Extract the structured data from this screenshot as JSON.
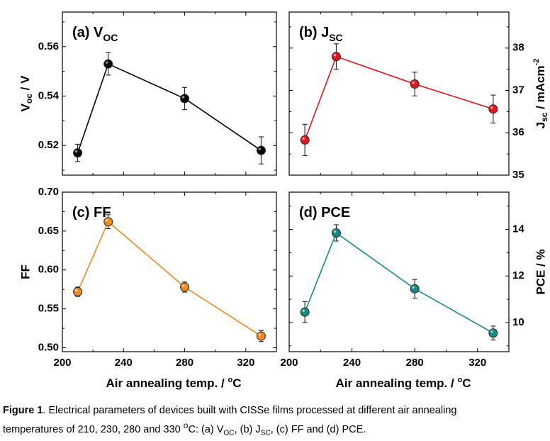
{
  "chart_data": [
    {
      "type": "line",
      "panel": "(a)",
      "title": "V",
      "title_sub": "OC",
      "ylabel": "V",
      "ylabel_sub": "oc",
      "ylabel_unit": " / V",
      "yaxis_side": "left",
      "ylim": [
        0.508,
        0.574
      ],
      "yticks": [
        0.52,
        0.54,
        0.56
      ],
      "ytick_labels": [
        "0.52",
        "0.54",
        "0.56"
      ],
      "xlim": [
        200,
        340
      ],
      "color": "#000000",
      "x": [
        210,
        230,
        280,
        330
      ],
      "y": [
        0.517,
        0.553,
        0.539,
        0.518
      ],
      "err": [
        0.0035,
        0.0045,
        0.0045,
        0.0055
      ]
    },
    {
      "type": "line",
      "panel": "(b)",
      "title": "J",
      "title_sub": "SC",
      "ylabel": "J",
      "ylabel_sub": "sc",
      "ylabel_unit": " / mAcm",
      "ylabel_sup": "-2",
      "yaxis_side": "right",
      "ylim": [
        35.0,
        38.85
      ],
      "yticks": [
        35,
        36,
        37,
        38
      ],
      "ytick_labels": [
        "35",
        "36",
        "37",
        "38"
      ],
      "xlim": [
        200,
        340
      ],
      "color": "#e8141c",
      "x": [
        210,
        230,
        280,
        330
      ],
      "y": [
        35.83,
        37.8,
        37.15,
        36.56
      ],
      "err": [
        0.37,
        0.3,
        0.28,
        0.33
      ]
    },
    {
      "type": "line",
      "panel": "(c)",
      "title": "FF",
      "ylabel": "FF",
      "yaxis_side": "left",
      "ylim": [
        0.495,
        0.7
      ],
      "yticks": [
        0.5,
        0.55,
        0.6,
        0.65,
        0.7
      ],
      "ytick_labels": [
        "0.50",
        "0.55",
        "0.60",
        "0.65",
        "0.70"
      ],
      "xlim": [
        200,
        340
      ],
      "xticks": [
        200,
        240,
        280,
        320
      ],
      "xtick_labels": [
        "200",
        "240",
        "280",
        "320"
      ],
      "xlabel": "Air annealing temp. / ",
      "xlabel_sup": "o",
      "xlabel_tail": "C",
      "color": "#f28a1c",
      "x": [
        210,
        230,
        280,
        330
      ],
      "y": [
        0.572,
        0.662,
        0.578,
        0.515
      ],
      "err": [
        0.006,
        0.009,
        0.0065,
        0.007
      ]
    },
    {
      "type": "line",
      "panel": "(d)",
      "title": "PCE",
      "ylabel": "PCE / %",
      "yaxis_side": "right",
      "ylim": [
        8.75,
        15.6
      ],
      "yticks": [
        10,
        12,
        14
      ],
      "ytick_labels": [
        "10",
        "12",
        "14"
      ],
      "xlim": [
        200,
        340
      ],
      "xticks": [
        200,
        240,
        280,
        320
      ],
      "xtick_labels": [
        "200",
        "240",
        "280",
        "320"
      ],
      "xlabel": "Air annealing temp. / ",
      "xlabel_sup": "o",
      "xlabel_tail": "C",
      "color": "#168a86",
      "x": [
        210,
        230,
        280,
        330
      ],
      "y": [
        10.45,
        13.85,
        11.45,
        9.55
      ],
      "err": [
        0.45,
        0.35,
        0.4,
        0.3
      ]
    }
  ],
  "caption": {
    "label": "Figure 1",
    "line1_pre": ". Electrical parameters of devices built with CISSe films processed at different air annealing",
    "line2_pre": "temperatures of 210, 230, 280 and 330 ",
    "deg": "o",
    "line2_a": "C: (a) V",
    "sub_oc": "OC",
    "line2_b": ", (b) J",
    "sub_sc": "SC",
    "line2_c": ", (c) FF and (d) PCE."
  }
}
